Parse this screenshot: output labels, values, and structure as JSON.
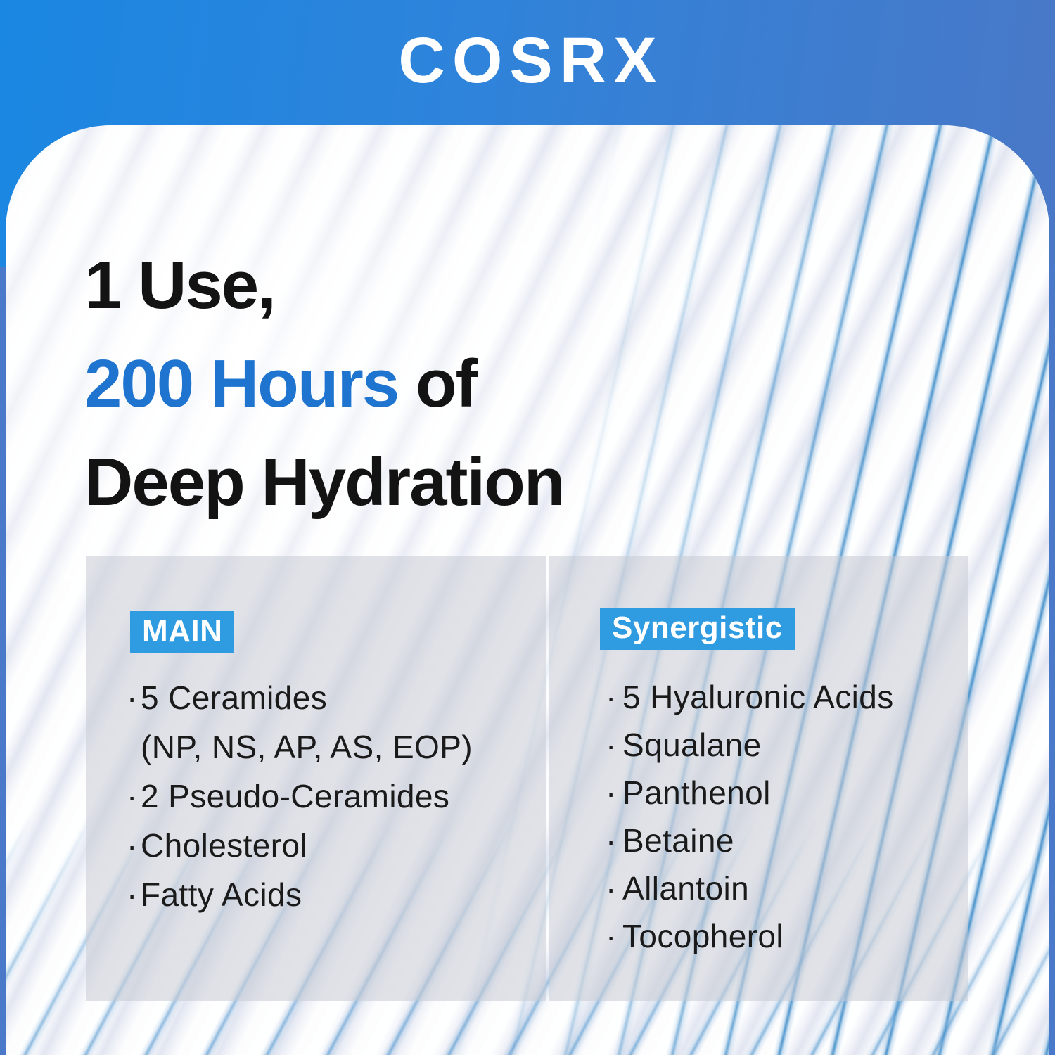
{
  "brand": {
    "logo_text": "COSRX"
  },
  "headline": {
    "line1": "1 Use,",
    "line2_highlight": "200 Hours",
    "line2_rest": " of",
    "line3": "Deep Hydration"
  },
  "ingredients": {
    "main": {
      "badge_label": "MAIN",
      "bullet": "·",
      "items": [
        "5 Ceramides",
        "(NP, NS, AP, AS, EOP)",
        "2 Pseudo-Ceramides",
        "Cholesterol",
        "Fatty Acids"
      ]
    },
    "synergistic": {
      "badge_label": "Synergistic",
      "bullet": "·",
      "items": [
        "5 Hyaluronic Acids",
        "Squalane",
        "Panthenol",
        "Betaine",
        "Allantoin",
        "Tocopherol"
      ]
    }
  },
  "colors": {
    "header_blue_left": "#1a87e2",
    "header_blue_right": "#4a78c7",
    "headline_accent_blue": "#1f74d0",
    "badge_blue": "#2f9ce2",
    "text_black": "#131313",
    "panel_overlay_gray": "#c6cad4",
    "texture_stripe_blue": "#3e8cc8"
  }
}
